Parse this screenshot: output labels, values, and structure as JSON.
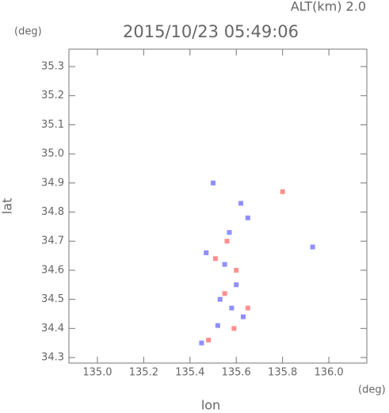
{
  "chart_data": {
    "type": "scatter",
    "title": "2015/10/23 05:49:06",
    "altitude_label": "ALT(km) 2.0",
    "x_label": "lon",
    "y_label": "lat",
    "x_unit": "(deg)",
    "y_unit": "(deg)",
    "xlim": [
      134.877,
      136.164
    ],
    "ylim": [
      34.281,
      35.36
    ],
    "xticks": [
      {
        "value": 135.0,
        "label": "135.0"
      },
      135.2,
      135.4,
      135.6,
      135.8,
      {
        "value": 136.0,
        "label": "136.0"
      }
    ],
    "yticks": [
      34.3,
      34.4,
      34.5,
      34.6,
      34.7,
      34.8,
      34.9,
      {
        "value": 35.0,
        "label": "35.0"
      },
      35.1,
      35.2,
      35.3
    ],
    "series": [
      {
        "color": "#8f8fff",
        "x": [
          135.93,
          135.45,
          135.5,
          135.55,
          135.6,
          135.58,
          135.62,
          135.52,
          135.65,
          135.47,
          135.57,
          135.53,
          135.63
        ],
        "y": [
          34.68,
          34.35,
          34.9,
          34.62,
          34.55,
          34.47,
          34.83,
          34.41,
          34.78,
          34.66,
          34.73,
          34.5,
          34.44
        ]
      },
      {
        "color": "#ff9090",
        "x": [
          135.8,
          135.65,
          135.48,
          135.56,
          135.6,
          135.55,
          135.51,
          135.59
        ],
        "y": [
          34.87,
          34.47,
          34.36,
          34.7,
          34.6,
          34.52,
          34.64,
          34.4
        ]
      }
    ]
  }
}
